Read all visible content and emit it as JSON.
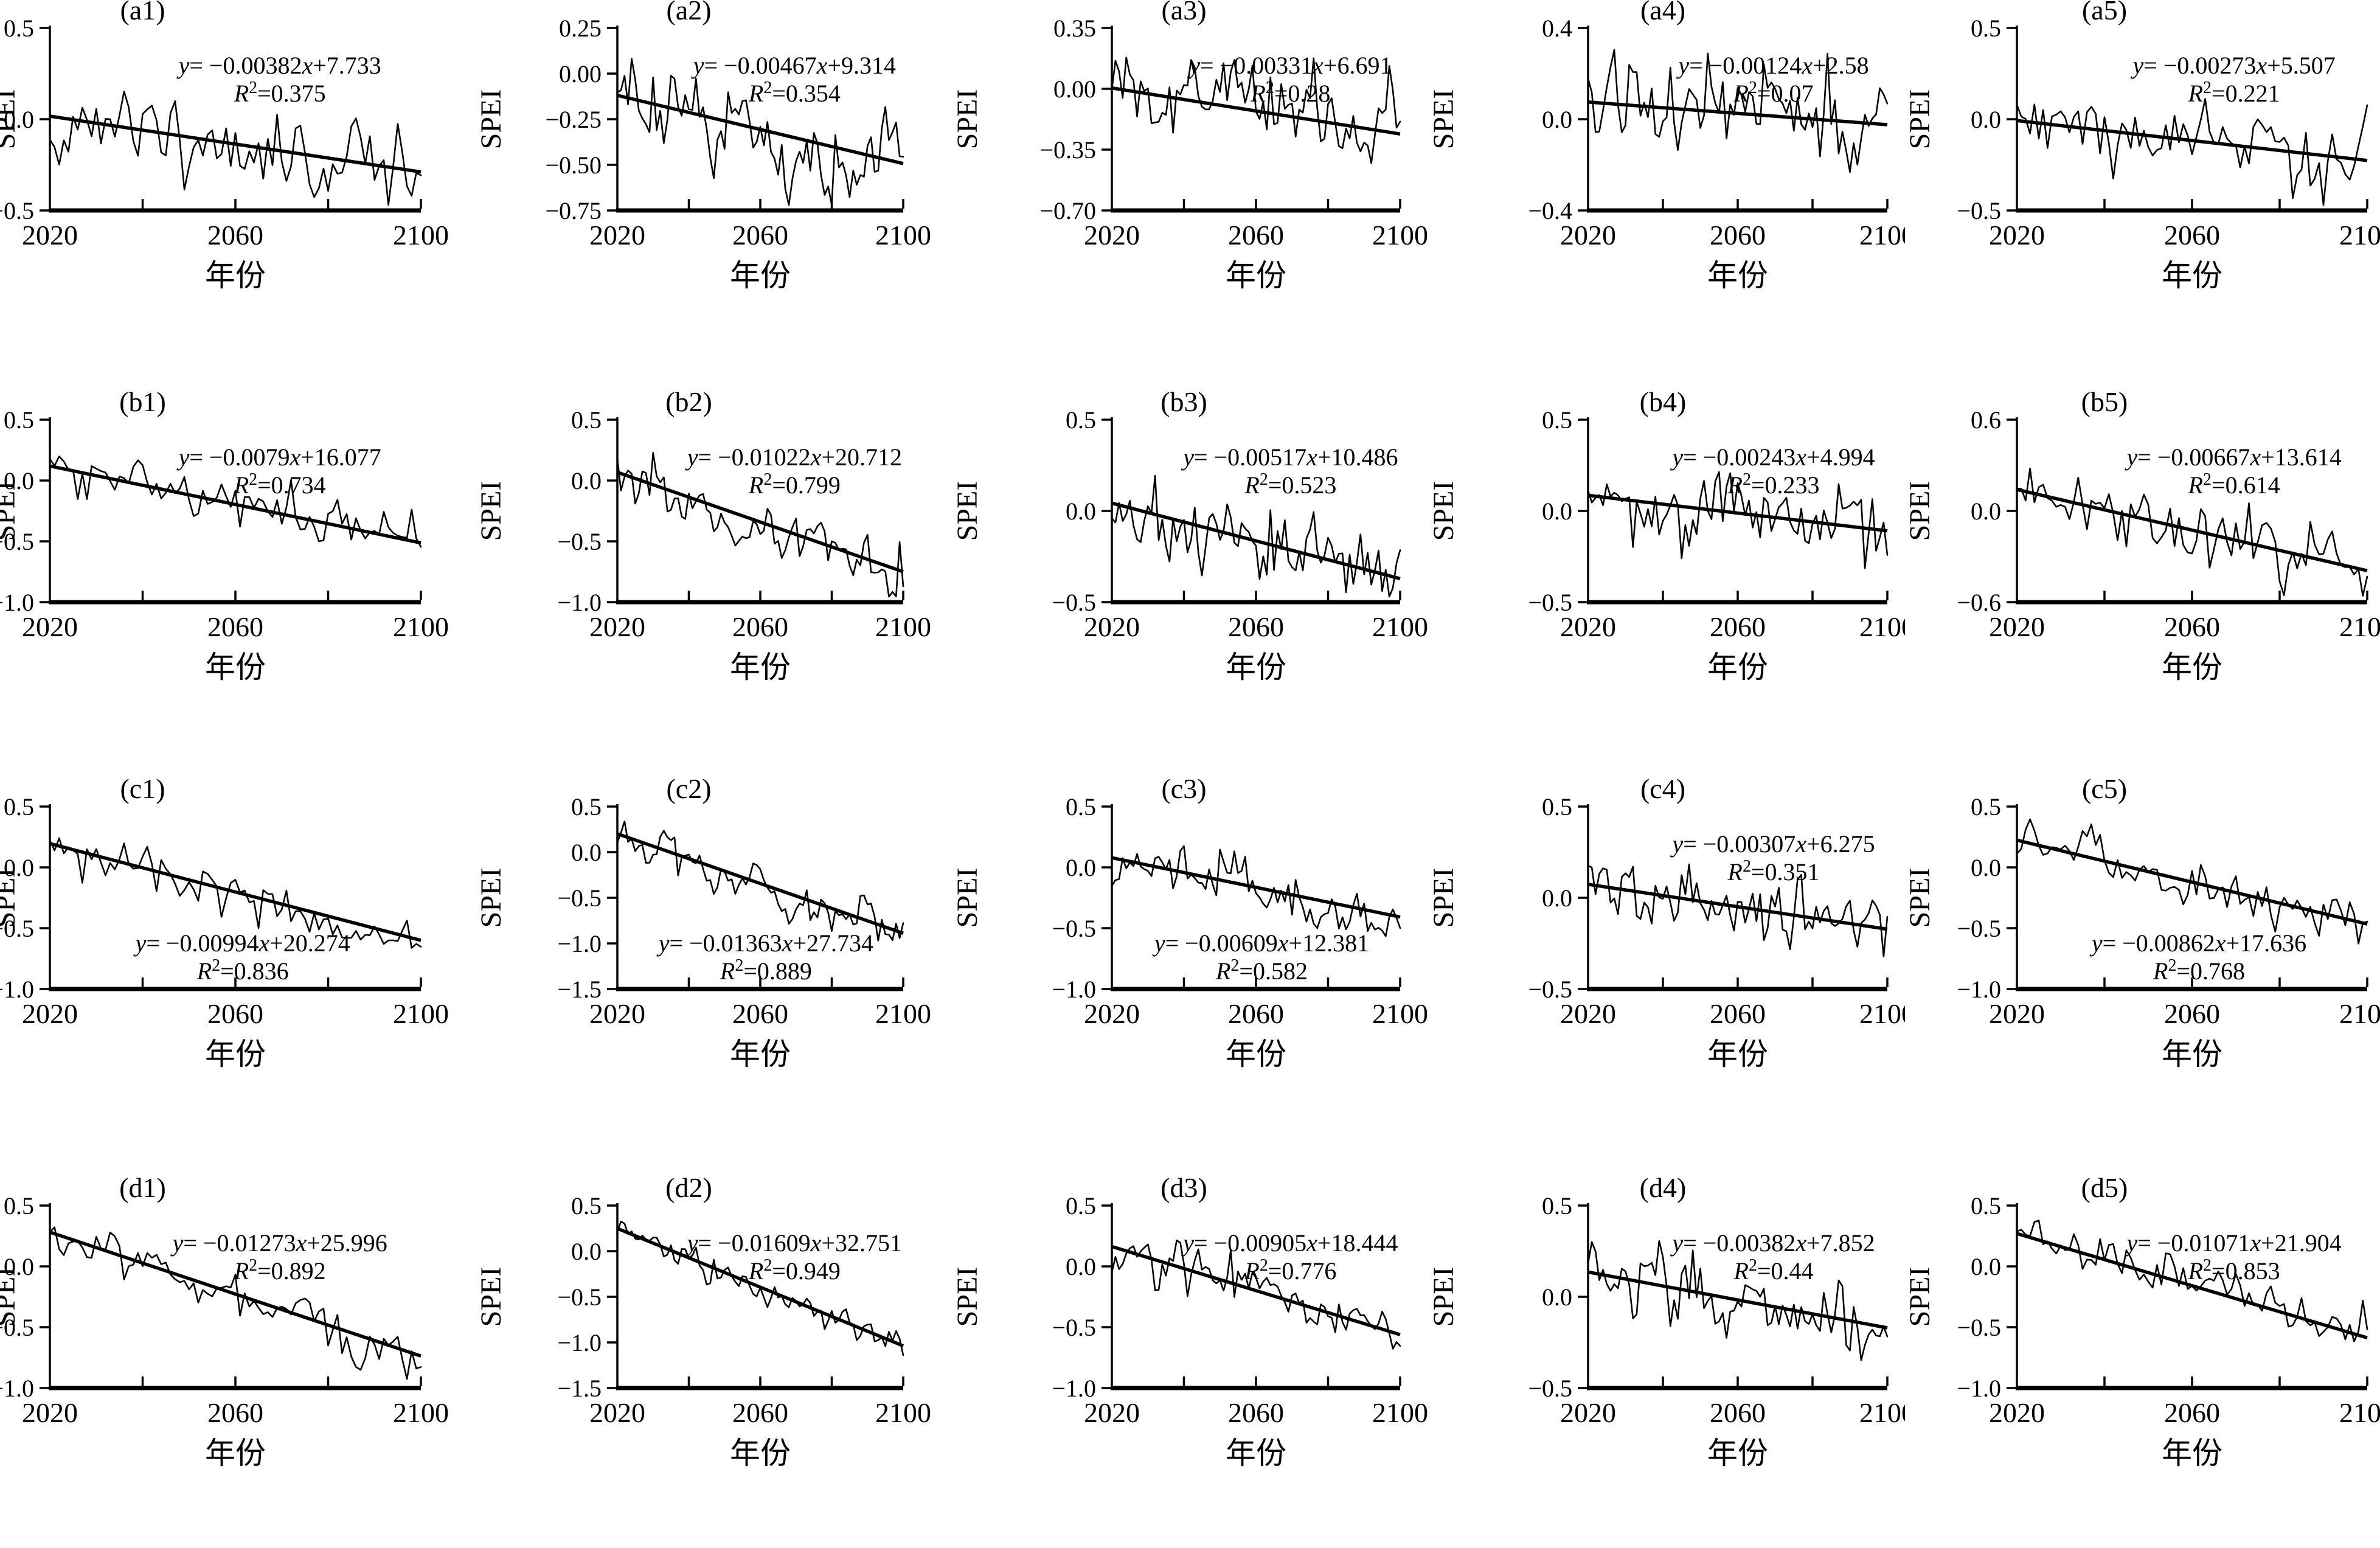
{
  "figure": {
    "background": "#ffffff",
    "line_color": "#000000",
    "ylabel": "SPEI",
    "xlabel": "年份",
    "x_range": [
      2020,
      2100
    ],
    "x_minor_ticks": [
      2040,
      2060,
      2080,
      2100
    ],
    "x_labeled_ticks": [
      "2020",
      "2060",
      "2100"
    ],
    "n_points": 81,
    "series_note": "Each panel: thin jagged SPEI annual series 2020-2100 plus thick straight linear trend line; series reconstructed from trend slope/intercept and R² (noise variance chosen so explained variance matches R²)."
  },
  "chart_data": [
    {
      "id": "a1",
      "type": "line",
      "title": "(a1)",
      "ylim": [
        -0.5,
        0.5
      ],
      "ytick_labels": [
        "0.5",
        "0.0",
        "−0.5"
      ],
      "slope": -0.00382,
      "intercept": 7.733,
      "r2": 0.375,
      "slope_str": "−0.00382",
      "intercept_str": "+7.733",
      "r2_str": "0.375",
      "equation": "y= −0.00382x+7.733",
      "r2_line": "R²=0.375",
      "trend_y_2020": 0.017,
      "trend_y_2100": -0.289,
      "equation_pos": "top",
      "noise_seed": 11
    },
    {
      "id": "a2",
      "type": "line",
      "title": "(a2)",
      "ylim": [
        -0.75,
        0.25
      ],
      "ytick_labels": [
        "0.25",
        "0.00",
        "−0.25",
        "−0.50",
        "−0.75"
      ],
      "slope": -0.00467,
      "intercept": 9.314,
      "r2": 0.354,
      "slope_str": "−0.00467",
      "intercept_str": "+9.314",
      "r2_str": "0.354",
      "equation": "y= −0.00467x+9.314",
      "r2_line": "R²=0.354",
      "trend_y_2020": -0.119,
      "trend_y_2100": -0.493,
      "equation_pos": "top",
      "noise_seed": 22
    },
    {
      "id": "a3",
      "type": "line",
      "title": "(a3)",
      "ylim": [
        -0.7,
        0.35
      ],
      "ytick_labels": [
        "0.35",
        "0.00",
        "−0.35",
        "−0.70"
      ],
      "slope": -0.00331,
      "intercept": 6.691,
      "r2": 0.28,
      "slope_str": "−0.00331",
      "intercept_str": "+6.691",
      "r2_str": "0.28",
      "equation": "y= −0.00331x+6.691",
      "r2_line": "R²=0.28",
      "trend_y_2020": 0.005,
      "trend_y_2100": -0.26,
      "equation_pos": "top",
      "noise_seed": 33
    },
    {
      "id": "a4",
      "type": "line",
      "title": "(a4)",
      "ylim": [
        -0.4,
        0.4
      ],
      "ytick_labels": [
        "0.4",
        "0.0",
        "−0.4"
      ],
      "slope": -0.00124,
      "intercept": 2.58,
      "r2": 0.07,
      "slope_str": "−0.00124",
      "intercept_str": "+2.58",
      "r2_str": "0.07",
      "equation": "y= −0.00124x+2.58",
      "r2_line": "R²=0.07",
      "trend_y_2020": 0.075,
      "trend_y_2100": -0.024,
      "equation_pos": "top",
      "noise_seed": 44
    },
    {
      "id": "a5",
      "type": "line",
      "title": "(a5)",
      "ylim": [
        -0.5,
        0.5
      ],
      "ytick_labels": [
        "0.5",
        "0.0",
        "−0.5"
      ],
      "slope": -0.00273,
      "intercept": 5.507,
      "r2": 0.221,
      "slope_str": "−0.00273",
      "intercept_str": "+5.507",
      "r2_str": "0.221",
      "equation": "y= −0.00273x+5.507",
      "r2_line": "R²=0.221",
      "trend_y_2020": -0.008,
      "trend_y_2100": -0.226,
      "equation_pos": "top",
      "noise_seed": 55
    },
    {
      "id": "b1",
      "type": "line",
      "title": "(b1)",
      "ylim": [
        -1.0,
        0.5
      ],
      "ytick_labels": [
        "0.5",
        "0.0",
        "−0.5",
        "−1.0"
      ],
      "slope": -0.0079,
      "intercept": 16.077,
      "r2": 0.734,
      "slope_str": "−0.0079",
      "intercept_str": "+16.077",
      "r2_str": "0.734",
      "equation": "y= −0.0079x+16.077",
      "r2_line": "R²=0.734",
      "trend_y_2020": 0.119,
      "trend_y_2100": -0.513,
      "equation_pos": "top",
      "noise_seed": 66
    },
    {
      "id": "b2",
      "type": "line",
      "title": "(b2)",
      "ylim": [
        -1.0,
        0.5
      ],
      "ytick_labels": [
        "0.5",
        "0.0",
        "−0.5",
        "−1.0"
      ],
      "slope": -0.01022,
      "intercept": 20.712,
      "r2": 0.799,
      "slope_str": "−0.01022",
      "intercept_str": "+20.712",
      "r2_str": "0.799",
      "equation": "y= −0.01022x+20.712",
      "r2_line": "R²=0.799",
      "trend_y_2020": 0.068,
      "trend_y_2100": -0.75,
      "equation_pos": "top",
      "noise_seed": 77
    },
    {
      "id": "b3",
      "type": "line",
      "title": "(b3)",
      "ylim": [
        -0.5,
        0.5
      ],
      "ytick_labels": [
        "0.5",
        "0.0",
        "−0.5"
      ],
      "slope": -0.00517,
      "intercept": 10.486,
      "r2": 0.523,
      "slope_str": "−0.00517",
      "intercept_str": "+10.486",
      "r2_str": "0.523",
      "equation": "y= −0.00517x+10.486",
      "r2_line": "R²=0.523",
      "trend_y_2020": 0.043,
      "trend_y_2100": -0.371,
      "equation_pos": "top",
      "noise_seed": 88
    },
    {
      "id": "b4",
      "type": "line",
      "title": "(b4)",
      "ylim": [
        -0.5,
        0.5
      ],
      "ytick_labels": [
        "0.5",
        "0.0",
        "−0.5"
      ],
      "slope": -0.00243,
      "intercept": 4.994,
      "r2": 0.233,
      "slope_str": "−0.00243",
      "intercept_str": "+4.994",
      "r2_str": "0.233",
      "equation": "y= −0.00243x+4.994",
      "r2_line": "R²=0.233",
      "trend_y_2020": 0.085,
      "trend_y_2100": -0.109,
      "equation_pos": "top",
      "noise_seed": 99
    },
    {
      "id": "b5",
      "type": "line",
      "title": "(b5)",
      "ylim": [
        -0.6,
        0.6
      ],
      "ytick_labels": [
        "0.6",
        "0.0",
        "−0.6"
      ],
      "slope": -0.00667,
      "intercept": 13.614,
      "r2": 0.614,
      "slope_str": "−0.00667",
      "intercept_str": "+13.614",
      "r2_str": "0.614",
      "equation": "y= −0.00667x+13.614",
      "r2_line": "R²=0.614",
      "trend_y_2020": 0.141,
      "trend_y_2100": -0.393,
      "equation_pos": "top",
      "noise_seed": 110
    },
    {
      "id": "c1",
      "type": "line",
      "title": "(c1)",
      "ylim": [
        -1.0,
        0.5
      ],
      "ytick_labels": [
        "0.5",
        "0.0",
        "−0.5",
        "−1.0"
      ],
      "slope": -0.00994,
      "intercept": 20.274,
      "r2": 0.836,
      "slope_str": "−0.00994",
      "intercept_str": "+20.274",
      "r2_str": "0.836",
      "equation": "y= −0.00994x+20.274",
      "r2_line": "R²=0.836",
      "trend_y_2020": 0.195,
      "trend_y_2100": -0.6,
      "equation_pos": "bottom",
      "noise_seed": 121
    },
    {
      "id": "c2",
      "type": "line",
      "title": "(c2)",
      "ylim": [
        -1.5,
        0.5
      ],
      "ytick_labels": [
        "0.5",
        "0.0",
        "−0.5",
        "−1.0",
        "−1.5"
      ],
      "slope": -0.01363,
      "intercept": 27.734,
      "r2": 0.889,
      "slope_str": "−0.01363",
      "intercept_str": "+27.734",
      "r2_str": "0.889",
      "equation": "y= −0.01363x+27.734",
      "r2_line": "R²=0.889",
      "trend_y_2020": 0.201,
      "trend_y_2100": -0.889,
      "equation_pos": "bottom",
      "noise_seed": 132
    },
    {
      "id": "c3",
      "type": "line",
      "title": "(c3)",
      "ylim": [
        -1.0,
        0.5
      ],
      "ytick_labels": [
        "0.5",
        "0.0",
        "−0.5",
        "−1.0"
      ],
      "slope": -0.00609,
      "intercept": 12.381,
      "r2": 0.582,
      "slope_str": "−0.00609",
      "intercept_str": "+12.381",
      "r2_str": "0.582",
      "equation": "y= −0.00609x+12.381",
      "r2_line": "R²=0.582",
      "trend_y_2020": 0.079,
      "trend_y_2100": -0.408,
      "equation_pos": "bottom",
      "noise_seed": 143
    },
    {
      "id": "c4",
      "type": "line",
      "title": "(c4)",
      "ylim": [
        -0.5,
        0.5
      ],
      "ytick_labels": [
        "0.5",
        "0.0",
        "−0.5"
      ],
      "slope": -0.00307,
      "intercept": 6.275,
      "r2": 0.351,
      "slope_str": "−0.00307",
      "intercept_str": "+6.275",
      "r2_str": "0.351",
      "equation": "y= −0.00307x+6.275",
      "r2_line": "R²=0.351",
      "trend_y_2020": 0.074,
      "trend_y_2100": -0.172,
      "equation_pos": "top",
      "noise_seed": 154
    },
    {
      "id": "c5",
      "type": "line",
      "title": "(c5)",
      "ylim": [
        -1.0,
        0.5
      ],
      "ytick_labels": [
        "0.5",
        "0.0",
        "−0.5",
        "−1.0"
      ],
      "slope": -0.00862,
      "intercept": 17.636,
      "r2": 0.768,
      "slope_str": "−0.00862",
      "intercept_str": "+17.636",
      "r2_str": "0.768",
      "equation": "y= −0.00862x+17.636",
      "r2_line": "R²=0.768",
      "trend_y_2020": 0.224,
      "trend_y_2100": -0.466,
      "equation_pos": "bottom",
      "noise_seed": 165
    },
    {
      "id": "d1",
      "type": "line",
      "title": "(d1)",
      "ylim": [
        -1.0,
        0.5
      ],
      "ytick_labels": [
        "0.5",
        "0.0",
        "−0.5",
        "−1.0"
      ],
      "slope": -0.01273,
      "intercept": 25.996,
      "r2": 0.892,
      "slope_str": "−0.01273",
      "intercept_str": "+25.996",
      "r2_str": "0.892",
      "equation": "y= −0.01273x+25.996",
      "r2_line": "R²=0.892",
      "trend_y_2020": 0.281,
      "trend_y_2100": -0.737,
      "equation_pos": "top",
      "noise_seed": 176
    },
    {
      "id": "d2",
      "type": "line",
      "title": "(d2)",
      "ylim": [
        -1.5,
        0.5
      ],
      "ytick_labels": [
        "0.5",
        "0.0",
        "−0.5",
        "−1.0",
        "−1.5"
      ],
      "slope": -0.01609,
      "intercept": 32.751,
      "r2": 0.949,
      "slope_str": "−0.01609",
      "intercept_str": "+32.751",
      "r2_str": "0.949",
      "equation": "y= −0.01609x+32.751",
      "r2_line": "R²=0.949",
      "trend_y_2020": 0.249,
      "trend_y_2100": -1.038,
      "equation_pos": "top",
      "noise_seed": 187
    },
    {
      "id": "d3",
      "type": "line",
      "title": "(d3)",
      "ylim": [
        -1.0,
        0.5
      ],
      "ytick_labels": [
        "0.5",
        "0.0",
        "−0.5",
        "−1.0"
      ],
      "slope": -0.00905,
      "intercept": 18.444,
      "r2": 0.776,
      "slope_str": "−0.00905",
      "intercept_str": "+18.444",
      "r2_str": "0.776",
      "equation": "y= −0.00905x+18.444",
      "r2_line": "R²=0.776",
      "trend_y_2020": 0.163,
      "trend_y_2100": -0.561,
      "equation_pos": "top",
      "noise_seed": 198
    },
    {
      "id": "d4",
      "type": "line",
      "title": "(d4)",
      "ylim": [
        -0.5,
        0.5
      ],
      "ytick_labels": [
        "0.5",
        "0.0",
        "−0.5"
      ],
      "slope": -0.00382,
      "intercept": 7.852,
      "r2": 0.44,
      "slope_str": "−0.00382",
      "intercept_str": "+7.852",
      "r2_str": "0.44",
      "equation": "y= −0.00382x+7.852",
      "r2_line": "R²=0.44",
      "trend_y_2020": 0.136,
      "trend_y_2100": -0.17,
      "equation_pos": "top",
      "noise_seed": 209
    },
    {
      "id": "d5",
      "type": "line",
      "title": "(d5)",
      "ylim": [
        -1.0,
        0.5
      ],
      "ytick_labels": [
        "0.5",
        "0.0",
        "−0.5",
        "−1.0"
      ],
      "slope": -0.01071,
      "intercept": 21.904,
      "r2": 0.853,
      "slope_str": "−0.01071",
      "intercept_str": "+21.904",
      "r2_str": "0.853",
      "equation": "y= −0.01071x+21.904",
      "r2_line": "R²=0.853",
      "trend_y_2020": 0.27,
      "trend_y_2100": -0.587,
      "equation_pos": "top",
      "noise_seed": 220
    }
  ]
}
